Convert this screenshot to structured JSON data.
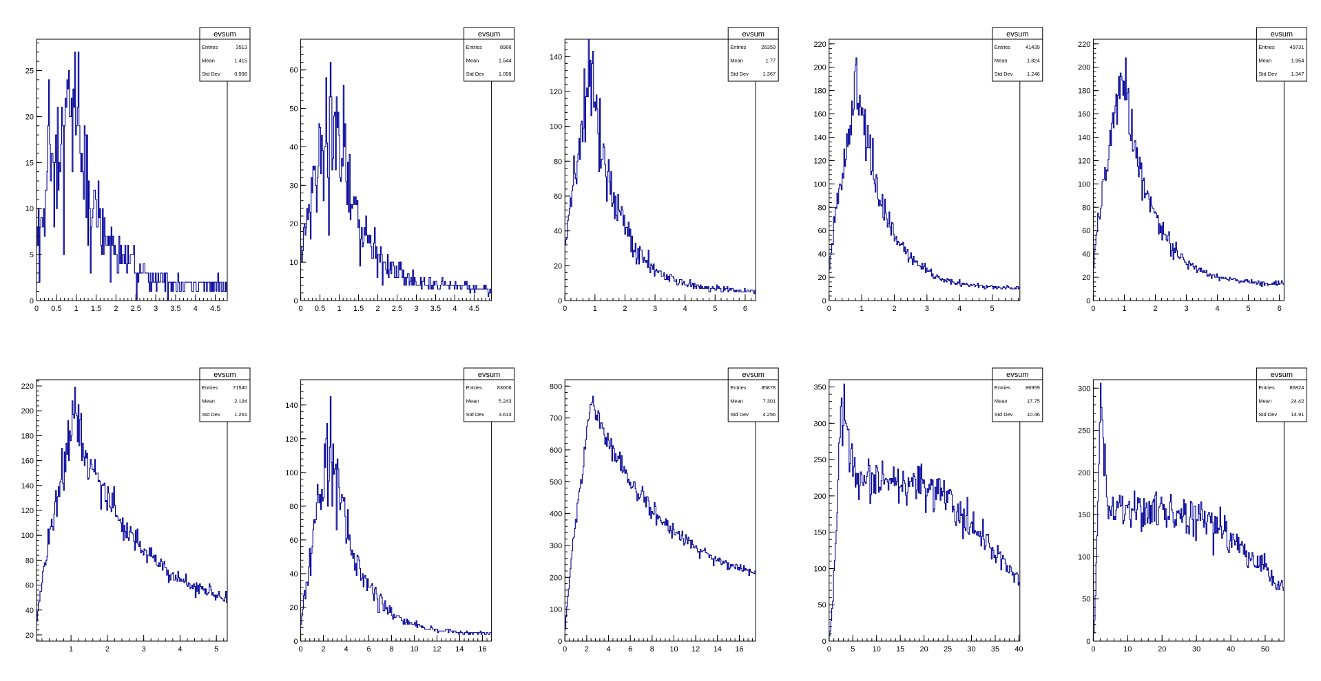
{
  "colors": {
    "line": "#000099",
    "frame": "#000000",
    "background": "#ffffff"
  },
  "chart_data": [
    {
      "type": "histogram",
      "stats": {
        "title": "evsum",
        "rows": [
          [
            "Entries",
            "3513"
          ],
          [
            "Mean",
            "1.415"
          ],
          [
            "Std Dev",
            "0.998"
          ]
        ]
      },
      "xlim": [
        0,
        4.8
      ],
      "ylim": [
        0,
        28.4
      ],
      "xticks": [
        0,
        0.5,
        1,
        1.5,
        2,
        2.5,
        3,
        3.5,
        4,
        4.5
      ],
      "xtick_labels": [
        "0",
        "0.5",
        "1",
        "1.5",
        "2",
        "2.5",
        "3",
        "3.5",
        "4",
        "4.5"
      ],
      "yticks": [
        0,
        5,
        10,
        15,
        20,
        25
      ],
      "ytick_labels": [
        "0",
        "5",
        "10",
        "15",
        "20",
        "25"
      ],
      "shape": {
        "kind": "peak",
        "peak_x": 0.9,
        "peak_y": 20,
        "start_y": 5,
        "tail_y": 1.5,
        "noise": 0.35,
        "int": true
      }
    },
    {
      "type": "histogram",
      "stats": {
        "title": "evsum",
        "rows": [
          [
            "Entries",
            "8966"
          ],
          [
            "Mean",
            "1.544"
          ],
          [
            "Std Dev",
            "1.058"
          ]
        ]
      },
      "xlim": [
        0,
        4.95
      ],
      "ylim": [
        0,
        68
      ],
      "xticks": [
        0,
        0.5,
        1,
        1.5,
        2,
        2.5,
        3,
        3.5,
        4,
        4.5
      ],
      "xtick_labels": [
        "0",
        "0.5",
        "1",
        "1.5",
        "2",
        "2.5",
        "3",
        "3.5",
        "4",
        "4.5"
      ],
      "yticks": [
        0,
        10,
        20,
        30,
        40,
        50,
        60
      ],
      "ytick_labels": [
        "0",
        "10",
        "20",
        "30",
        "40",
        "50",
        "60"
      ],
      "shape": {
        "kind": "peak",
        "peak_x": 0.85,
        "peak_y": 48,
        "start_y": 10,
        "tail_y": 3,
        "noise": 0.22,
        "int": true
      }
    },
    {
      "type": "histogram",
      "stats": {
        "title": "evsum",
        "rows": [
          [
            "Entries",
            "26359"
          ],
          [
            "Mean",
            "1.77"
          ],
          [
            "Std Dev",
            "1.367"
          ]
        ]
      },
      "xlim": [
        0,
        6.35
      ],
      "ylim": [
        0,
        150
      ],
      "xticks": [
        0,
        1,
        2,
        3,
        4,
        5,
        6
      ],
      "xtick_labels": [
        "0",
        "1",
        "2",
        "3",
        "4",
        "5",
        "6"
      ],
      "yticks": [
        0,
        20,
        40,
        60,
        80,
        100,
        120,
        140
      ],
      "ytick_labels": [
        "0",
        "20",
        "40",
        "60",
        "80",
        "100",
        "120",
        "140"
      ],
      "shape": {
        "kind": "peak",
        "peak_x": 0.85,
        "peak_y": 125,
        "start_y": 30,
        "tail_y": 5,
        "noise": 0.12,
        "int": true
      }
    },
    {
      "type": "histogram",
      "stats": {
        "title": "evsum",
        "rows": [
          [
            "Entries",
            "41439"
          ],
          [
            "Mean",
            "1.824"
          ],
          [
            "Std Dev",
            "1.246"
          ]
        ]
      },
      "xlim": [
        0,
        5.85
      ],
      "ylim": [
        0,
        224
      ],
      "xticks": [
        0,
        1,
        2,
        3,
        4,
        5
      ],
      "xtick_labels": [
        "0",
        "1",
        "2",
        "3",
        "4",
        "5"
      ],
      "yticks": [
        0,
        20,
        40,
        60,
        80,
        100,
        120,
        140,
        160,
        180,
        200,
        220
      ],
      "ytick_labels": [
        "0",
        "20",
        "40",
        "60",
        "80",
        "100",
        "120",
        "140",
        "160",
        "180",
        "200",
        "220"
      ],
      "shape": {
        "kind": "peak",
        "peak_x": 0.9,
        "peak_y": 185,
        "start_y": 25,
        "tail_y": 10,
        "noise": 0.08,
        "int": true
      }
    },
    {
      "type": "histogram",
      "stats": {
        "title": "evsum",
        "rows": [
          [
            "Entries",
            "49731"
          ],
          [
            "Mean",
            "1.954"
          ],
          [
            "Std Dev",
            "1.347"
          ]
        ]
      },
      "xlim": [
        0,
        6.15
      ],
      "ylim": [
        0,
        224
      ],
      "xticks": [
        0,
        1,
        2,
        3,
        4,
        5,
        6
      ],
      "xtick_labels": [
        "0",
        "1",
        "2",
        "3",
        "4",
        "5",
        "6"
      ],
      "yticks": [
        0,
        20,
        40,
        60,
        80,
        100,
        120,
        140,
        160,
        180,
        200,
        220
      ],
      "ytick_labels": [
        "0",
        "20",
        "40",
        "60",
        "80",
        "100",
        "120",
        "140",
        "160",
        "180",
        "200",
        "220"
      ],
      "shape": {
        "kind": "peak",
        "peak_x": 0.95,
        "peak_y": 198,
        "start_y": 25,
        "tail_y": 14,
        "noise": 0.07,
        "int": true
      }
    },
    {
      "type": "histogram",
      "stats": {
        "title": "evsum",
        "rows": [
          [
            "Entries",
            "71540"
          ],
          [
            "Mean",
            "2.194"
          ],
          [
            "Std Dev",
            "1.261"
          ]
        ]
      },
      "xlim": [
        0.05,
        5.3
      ],
      "ylim": [
        15,
        225
      ],
      "xticks": [
        1,
        2,
        3,
        4,
        5
      ],
      "xtick_labels": [
        "1",
        "2",
        "3",
        "4",
        "5"
      ],
      "yticks": [
        20,
        40,
        60,
        80,
        100,
        120,
        140,
        160,
        180,
        200,
        220
      ],
      "ytick_labels": [
        "20",
        "40",
        "60",
        "80",
        "100",
        "120",
        "140",
        "160",
        "180",
        "200",
        "220"
      ],
      "shape": {
        "kind": "peak",
        "peak_x": 1.1,
        "peak_y": 195,
        "start_y": 25,
        "tail_y": 35,
        "noise": 0.06,
        "int": true,
        "decay": 1.1
      }
    },
    {
      "type": "histogram",
      "stats": {
        "title": "evsum",
        "rows": [
          [
            "Entries",
            "83606"
          ],
          [
            "Mean",
            "5.243"
          ],
          [
            "Std Dev",
            "3.613"
          ]
        ]
      },
      "xlim": [
        0,
        16.8
      ],
      "ylim": [
        0,
        155
      ],
      "xticks": [
        0,
        2,
        4,
        6,
        8,
        10,
        12,
        14,
        16
      ],
      "xtick_labels": [
        "0",
        "2",
        "4",
        "6",
        "8",
        "10",
        "12",
        "14",
        "16"
      ],
      "yticks": [
        0,
        20,
        40,
        60,
        80,
        100,
        120,
        140
      ],
      "ytick_labels": [
        "0",
        "20",
        "40",
        "60",
        "80",
        "100",
        "120",
        "140"
      ],
      "shape": {
        "kind": "peak",
        "peak_x": 2.6,
        "peak_y": 118,
        "start_y": 5,
        "tail_y": 4,
        "noise": 0.12,
        "int": true
      }
    },
    {
      "type": "histogram",
      "stats": {
        "title": "evsum",
        "rows": [
          [
            "Entries",
            "85878"
          ],
          [
            "Mean",
            "7.301"
          ],
          [
            "Std Dev",
            "4.256"
          ]
        ]
      },
      "xlim": [
        0,
        17.5
      ],
      "ylim": [
        0,
        820
      ],
      "xticks": [
        0,
        2,
        4,
        6,
        8,
        10,
        12,
        14,
        16
      ],
      "xtick_labels": [
        "0",
        "2",
        "4",
        "6",
        "8",
        "10",
        "12",
        "14",
        "16"
      ],
      "yticks": [
        0,
        100,
        200,
        300,
        400,
        500,
        600,
        700,
        800
      ],
      "ytick_labels": [
        "0",
        "100",
        "200",
        "300",
        "400",
        "500",
        "600",
        "700",
        "800"
      ],
      "shape": {
        "kind": "peak",
        "peak_x": 2.4,
        "peak_y": 750,
        "start_y": 10,
        "tail_y": 145,
        "noise": 0.035,
        "int": true,
        "decay": 1.0
      }
    },
    {
      "type": "histogram",
      "stats": {
        "title": "evsum",
        "rows": [
          [
            "Entries",
            "86959"
          ],
          [
            "Mean",
            "17.75"
          ],
          [
            "Std Dev",
            "10.46"
          ]
        ]
      },
      "xlim": [
        0,
        40.2
      ],
      "ylim": [
        0,
        360
      ],
      "xticks": [
        0,
        5,
        10,
        15,
        20,
        25,
        30,
        35,
        40
      ],
      "xtick_labels": [
        "0",
        "5",
        "10",
        "15",
        "20",
        "25",
        "30",
        "35",
        "40"
      ],
      "yticks": [
        0,
        50,
        100,
        150,
        200,
        250,
        300,
        350
      ],
      "ytick_labels": [
        "0",
        "50",
        "100",
        "150",
        "200",
        "250",
        "300",
        "350"
      ],
      "shape": {
        "kind": "spike_plateau",
        "spike_x": 2.5,
        "spike_y": 330,
        "plateau_y": 230,
        "plateau_end": 23,
        "tail_y": 85,
        "noise": 0.07,
        "int": true
      }
    },
    {
      "type": "histogram",
      "stats": {
        "title": "evsum",
        "rows": [
          [
            "Entries",
            "86824"
          ],
          [
            "Mean",
            "24.42"
          ],
          [
            "Std Dev",
            "14.91"
          ]
        ]
      },
      "xlim": [
        0,
        55.5
      ],
      "ylim": [
        0,
        310
      ],
      "xticks": [
        0,
        10,
        20,
        30,
        40,
        50
      ],
      "xtick_labels": [
        "0",
        "10",
        "20",
        "30",
        "40",
        "50"
      ],
      "yticks": [
        0,
        50,
        100,
        150,
        200,
        250,
        300
      ],
      "ytick_labels": [
        "0",
        "50",
        "100",
        "150",
        "200",
        "250",
        "300"
      ],
      "shape": {
        "kind": "spike_plateau",
        "spike_x": 2.0,
        "spike_y": 280,
        "plateau_y": 160,
        "plateau_end": 33,
        "tail_y": 65,
        "noise": 0.08,
        "int": true
      }
    }
  ]
}
